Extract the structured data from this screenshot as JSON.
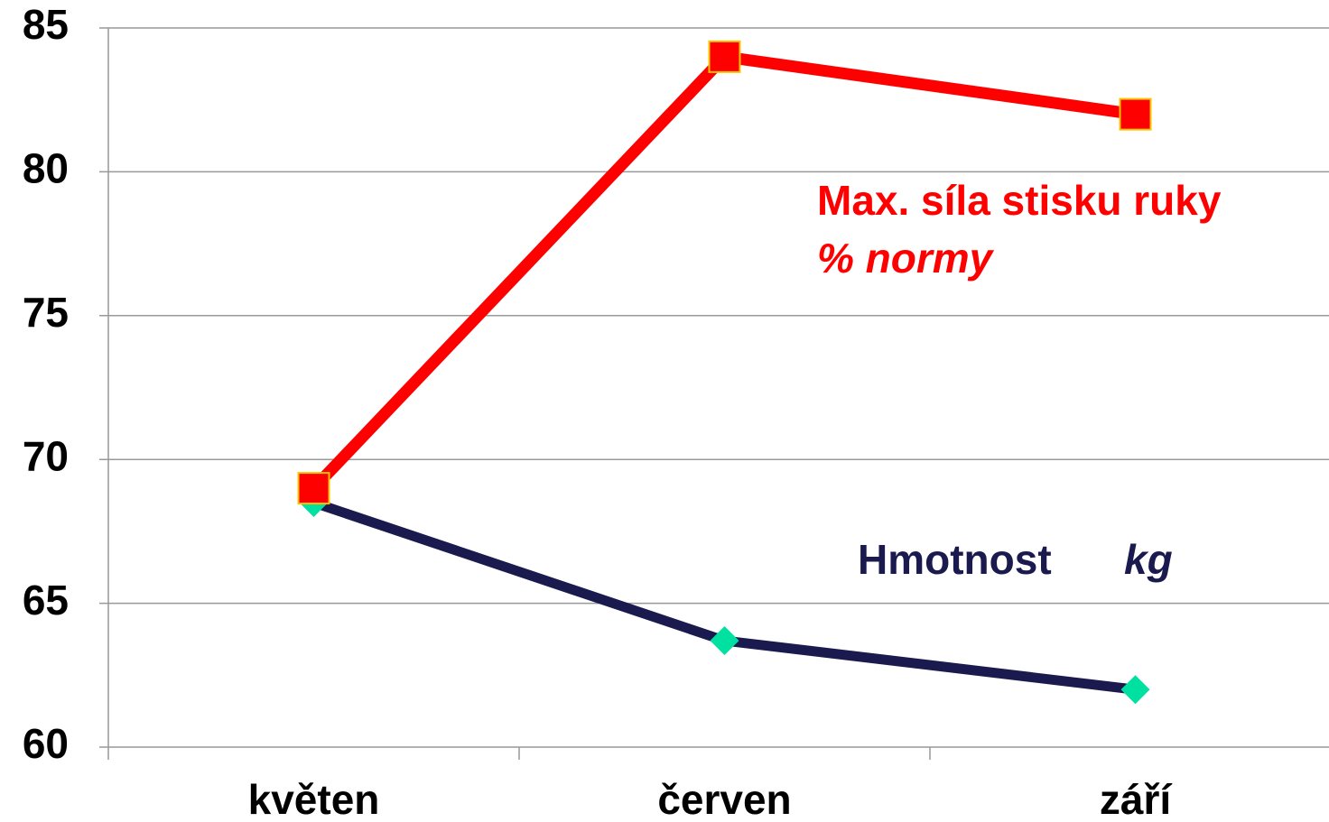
{
  "chart_data": {
    "type": "line",
    "categories": [
      "květen",
      "červen",
      "září"
    ],
    "series": [
      {
        "name": "Hmotnost",
        "unit": "kg",
        "color": "#1a1a4e",
        "marker_color": "#00e0a0",
        "values": [
          68.5,
          63.7,
          62
        ]
      },
      {
        "name": "Max. síla stisku ruky",
        "unit": "% normy",
        "color": "#ff0000",
        "marker_color": "#ff0000",
        "values": [
          69,
          84,
          82
        ]
      }
    ],
    "ylim": [
      60,
      85
    ],
    "yticks": [
      60,
      65,
      70,
      75,
      80,
      85
    ],
    "grid": true
  }
}
